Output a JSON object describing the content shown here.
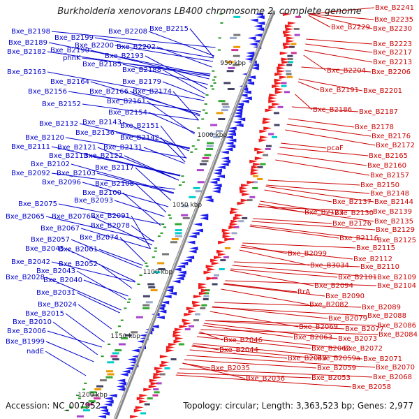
{
  "title": "Burkholderia xenovorans LB400 chromosome 2, complete genome",
  "footer": {
    "accession": "Accession: NC_007952",
    "summary": "Topology: circular; Length: 3,363,523 bp; Genes: 2,977"
  },
  "colors": {
    "left_labels": "#0000cc",
    "right_labels": "#cc0000",
    "reverse_genes": "#1a1aee",
    "forward_genes": "#ee1a1a",
    "backbone": "#888888"
  },
  "scale_marks": [
    "950 kbp",
    "1000 kbp",
    "1050 kbp",
    "1100 kbp",
    "1150 kbp",
    "1200 kbp"
  ],
  "left_labels": [
    "Bxe_B2198",
    "Bxe_B2199",
    "Bxe_B2208",
    "Bxe_B2215",
    "Bxe_B2189",
    "Bxe_B2200",
    "Bxe_B2202",
    "Bxe_B2182",
    "Bxe_B2190",
    "Bxe_B2193",
    "phnK",
    "Bxe_B2185",
    "Bxe_B2188",
    "Bxe_B2163",
    "Bxe_B2164",
    "Bxe_B2179",
    "Bxe_B2156",
    "Bxe_B2166",
    "Bxe_B2174",
    "Bxe_B2161",
    "Bxe_B2152",
    "Bxe_B2154",
    "Bxe_B2132",
    "Bxe_B2143",
    "Bxe_B2151",
    "Bxe_B2136",
    "Bxe_B2120",
    "Bxe_B2142",
    "Bxe_B2111",
    "Bxe_B2121",
    "Bxe_B2131",
    "Bxe_B2113",
    "Bxe_B2122",
    "Bxe_B2102",
    "Bxe_B2117",
    "Bxe_B2092",
    "Bxe_B2103",
    "Bxe_B2096",
    "Bxe_B2108",
    "Bxe_B2100",
    "Bxe_B2093",
    "Bxe_B2075",
    "Bxe_B2065",
    "Bxe_B2076",
    "Bxe_B2091",
    "Bxe_B2078",
    "Bxe_B2067",
    "Bxe_B2074",
    "Bxe_B2057",
    "Bxe_B2045",
    "Bxe_B2061",
    "Bxe_B2042",
    "Bxe_B2052",
    "Bxe_B2043",
    "Bxe_B2028",
    "Bxe_B2040",
    "Bxe_B2031",
    "Bxe_B2024",
    "Bxe_B2015",
    "Bxe_B2010",
    "Bxe_B2006",
    "Bxe_B1999",
    "nadE"
  ],
  "right_labels": [
    "Bxe_B2241",
    "Bxe_B2235",
    "Bxe_B2229",
    "Bxe_B2230",
    "Bxe_B2223",
    "Bxe_B2217",
    "Bxe_B2213",
    "Bxe_B2204",
    "Bxe_B2206",
    "Bxe_B2191",
    "Bxe_B2201",
    "Bxe_B2186",
    "Bxe_B2187",
    "Bxe_B2178",
    "Bxe_B2176",
    "Bxe_B2172",
    "pcaF",
    "Bxe_B2165",
    "Bxe_B2160",
    "Bxe_B2157",
    "Bxe_B2150",
    "Bxe_B2148",
    "Bxe_B2137",
    "Bxe_B2144",
    "Bxe_B2139",
    "Bxe_B2123",
    "Bxe_B2130",
    "Bxe_B2135",
    "Bxe_B2126",
    "Bxe_B2129",
    "Bxe_B2116",
    "Bxe_B2125",
    "Bxe_B2115",
    "Bxe_B2099",
    "Bxe_B2112",
    "Bxe_B3034",
    "Bxe_B2110",
    "Bxe_B2101",
    "Bxe_B2109",
    "Bxe_B2094",
    "Bxe_B2104",
    "ftrA",
    "Bxe_B2090",
    "Bxe_B2082",
    "Bxe_B2089",
    "Bxe_B2088",
    "Bxe_B2079",
    "Bxe_B2069",
    "Bxe_B2086",
    "Bxe_B2077",
    "Bxe_B2063",
    "Bxe_B2073",
    "Bxe_B2084",
    "Bxe_B2046",
    "Bxe_B2062",
    "Bxe_B2072",
    "Bxe_B2044",
    "Bxe_B2049",
    "Bxe_B2059a",
    "Bxe_B2071",
    "Bxe_B2035",
    "Bxe_B2059",
    "Bxe_B2070",
    "Bxe_B2036",
    "Bxe_B2053",
    "Bxe_B2068",
    "Bxe_B2058"
  ]
}
